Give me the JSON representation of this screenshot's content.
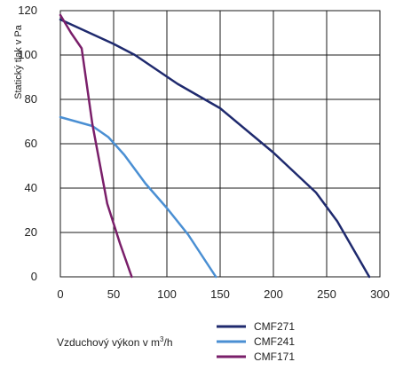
{
  "chart_data": {
    "type": "line",
    "ylabel": "Statický tlak v Pa",
    "xlabel_prefix": "Vzduchový výkon v m",
    "xlabel_sup": "3",
    "xlabel_suffix": "/h",
    "xlim": [
      0,
      300
    ],
    "ylim": [
      0,
      120
    ],
    "x_ticks": [
      0,
      50,
      100,
      150,
      200,
      250,
      300
    ],
    "y_ticks": [
      0,
      20,
      40,
      60,
      80,
      100,
      120
    ],
    "grid": true,
    "legend_position": "bottom-right",
    "series": [
      {
        "name": "CMF271",
        "color": "#1f2a6e",
        "points": [
          [
            0,
            116
          ],
          [
            50,
            105
          ],
          [
            70,
            100
          ],
          [
            110,
            87
          ],
          [
            150,
            76
          ],
          [
            200,
            56
          ],
          [
            240,
            38
          ],
          [
            260,
            25
          ],
          [
            290,
            0
          ]
        ]
      },
      {
        "name": "CMF241",
        "color": "#4a8fd3",
        "points": [
          [
            0,
            72
          ],
          [
            30,
            68
          ],
          [
            45,
            63
          ],
          [
            60,
            55
          ],
          [
            80,
            42
          ],
          [
            100,
            31
          ],
          [
            120,
            19
          ],
          [
            146,
            0
          ]
        ]
      },
      {
        "name": "CMF171",
        "color": "#7a1f6a",
        "points": [
          [
            0,
            118
          ],
          [
            10,
            110
          ],
          [
            20,
            103
          ],
          [
            30,
            69
          ],
          [
            44,
            33
          ],
          [
            56,
            15
          ],
          [
            67,
            0
          ]
        ]
      }
    ]
  }
}
